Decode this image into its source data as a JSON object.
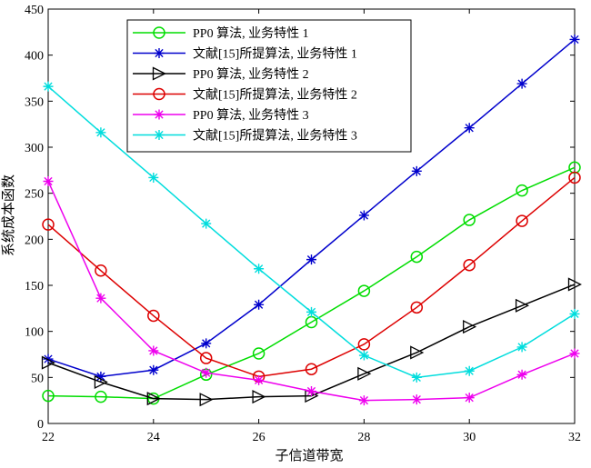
{
  "chart_data": {
    "type": "line",
    "xlabel": "子信道带宽",
    "ylabel": "系统成本函数",
    "xlim": [
      22,
      32
    ],
    "ylim": [
      0,
      450
    ],
    "xticks": [
      22,
      24,
      26,
      28,
      30,
      32
    ],
    "yticks": [
      0,
      50,
      100,
      150,
      200,
      250,
      300,
      350,
      400,
      450
    ],
    "grid": false,
    "legend_position": "top-center",
    "x": [
      22,
      23,
      24,
      25,
      26,
      27,
      28,
      29,
      30,
      31,
      32
    ],
    "series": [
      {
        "name": "PP0 算法, 业务特性 1",
        "color": "#00dd00",
        "marker": "circle",
        "values": [
          30,
          29,
          27,
          53,
          76,
          110,
          144,
          181,
          221,
          253,
          278
        ]
      },
      {
        "name": "文献[15]所提算法, 业务特性 1",
        "color": "#0000cc",
        "marker": "asterisk",
        "values": [
          70,
          51,
          58,
          87,
          129,
          178,
          226,
          274,
          321,
          369,
          417
        ]
      },
      {
        "name": "PP0 算法, 业务特性 2",
        "color": "#000000",
        "marker": "triangle-right",
        "values": [
          66,
          45,
          27,
          26,
          29,
          30,
          54,
          77,
          105,
          128,
          151
        ]
      },
      {
        "name": "文献[15]所提算法, 业务特性 2",
        "color": "#dd0000",
        "marker": "circle",
        "values": [
          216,
          166,
          117,
          71,
          51,
          59,
          86,
          126,
          172,
          220,
          267
        ]
      },
      {
        "name": "PP0 算法, 业务特性 3",
        "color": "#ee00ee",
        "marker": "asterisk",
        "values": [
          263,
          136,
          79,
          55,
          47,
          35,
          25,
          26,
          28,
          53,
          76
        ]
      },
      {
        "name": "文献[15]所提算法, 业务特性 3",
        "color": "#00dddd",
        "marker": "asterisk",
        "values": [
          366,
          316,
          267,
          217,
          168,
          121,
          74,
          50,
          57,
          83,
          119
        ]
      }
    ]
  }
}
